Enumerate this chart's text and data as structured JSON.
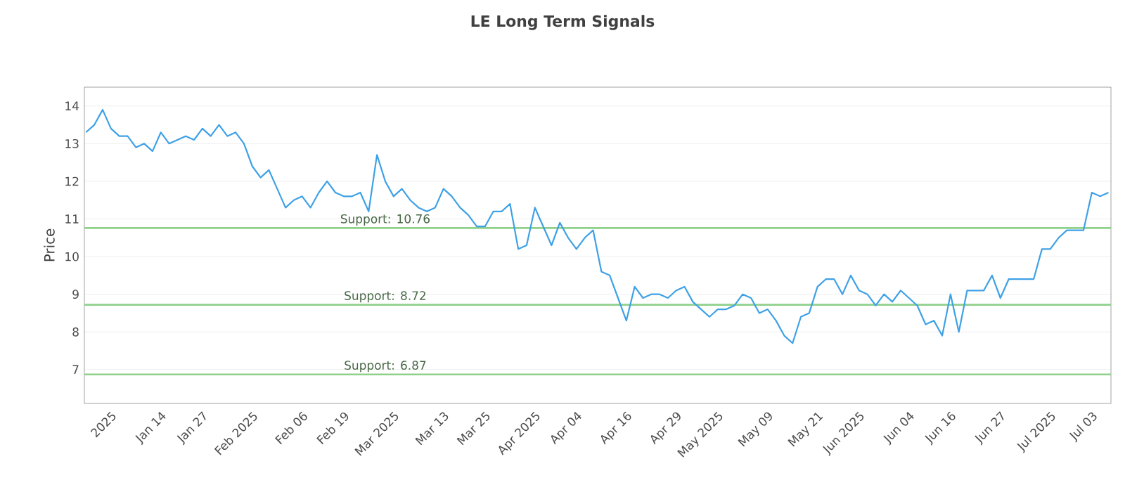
{
  "chart_data": {
    "type": "line",
    "title": "LE Long Term Signals",
    "ylabel": "Price",
    "categories": [
      null,
      null,
      null,
      "2025",
      null,
      null,
      null,
      null,
      null,
      "Jan 14",
      null,
      null,
      null,
      null,
      "Jan 27",
      null,
      null,
      null,
      null,
      null,
      "Feb 2025",
      null,
      null,
      null,
      null,
      null,
      "Feb 06",
      null,
      null,
      null,
      null,
      "Feb 19",
      null,
      null,
      null,
      null,
      null,
      "Mar 2025",
      null,
      null,
      null,
      null,
      null,
      "Mar 13",
      null,
      null,
      null,
      null,
      "Mar 25",
      null,
      null,
      null,
      null,
      null,
      "Apr 2025",
      null,
      null,
      null,
      null,
      "Apr 04",
      null,
      null,
      null,
      null,
      null,
      "Apr 16",
      null,
      null,
      null,
      null,
      null,
      "Apr 29",
      null,
      null,
      null,
      null,
      "May 2025",
      null,
      null,
      null,
      null,
      null,
      "May 09",
      null,
      null,
      null,
      null,
      null,
      "May 21",
      null,
      null,
      null,
      null,
      "Jun 2025",
      null,
      null,
      null,
      null,
      null,
      "Jun 04",
      null,
      null,
      null,
      null,
      "Jun 16",
      null,
      null,
      null,
      null,
      null,
      "Jun 27",
      null,
      null,
      null,
      null,
      null,
      "Jul 2025",
      null,
      null,
      null,
      null,
      "Jul 03",
      null,
      null
    ],
    "series": [
      {
        "color": "#3ea1e6",
        "values": [
          13.3,
          13.5,
          13.9,
          13.4,
          13.2,
          13.2,
          12.9,
          13.0,
          12.8,
          13.3,
          13.0,
          13.1,
          13.2,
          13.1,
          13.4,
          13.2,
          13.5,
          13.2,
          13.3,
          13.0,
          12.4,
          12.1,
          12.3,
          11.8,
          11.3,
          11.5,
          11.6,
          11.3,
          11.7,
          12.0,
          11.7,
          11.6,
          11.6,
          11.7,
          11.2,
          12.7,
          12.0,
          11.6,
          11.8,
          11.5,
          11.3,
          11.2,
          11.3,
          11.8,
          11.6,
          11.3,
          11.1,
          10.8,
          10.8,
          11.2,
          11.2,
          11.4,
          10.2,
          10.3,
          11.3,
          10.8,
          10.3,
          10.9,
          10.5,
          10.2,
          10.5,
          10.7,
          9.6,
          9.5,
          8.9,
          8.3,
          9.2,
          8.9,
          9.0,
          9.0,
          8.9,
          9.1,
          9.2,
          8.8,
          8.6,
          8.4,
          8.6,
          8.6,
          8.7,
          9.0,
          8.9,
          8.5,
          8.6,
          8.3,
          7.9,
          7.7,
          8.4,
          8.5,
          9.2,
          9.4,
          9.4,
          9.0,
          9.5,
          9.1,
          9.0,
          8.7,
          9.0,
          8.8,
          9.1,
          8.9,
          8.7,
          8.2,
          8.3,
          7.9,
          9.0,
          8.0,
          9.1,
          9.1,
          9.1,
          9.5,
          8.9,
          9.4,
          9.4,
          9.4,
          9.4,
          10.2,
          10.2,
          10.5,
          10.7,
          10.7,
          10.7,
          11.7,
          11.6,
          11.7
        ]
      }
    ],
    "ylim": [
      6.1,
      14.5
    ],
    "yticks": [
      7,
      8,
      9,
      10,
      11,
      12,
      13,
      14
    ],
    "grid": "y",
    "marker": "none",
    "line_style": "solid",
    "ref_lines": [
      {
        "axis": "y",
        "value": 10.76,
        "label": "Support: 10.76",
        "color": "#8fd08a"
      },
      {
        "axis": "y",
        "value": 8.72,
        "label": "Support: 8.72",
        "color": "#8fd08a"
      },
      {
        "axis": "y",
        "value": 6.87,
        "label": "Support: 6.87",
        "color": "#8fd08a"
      }
    ]
  }
}
